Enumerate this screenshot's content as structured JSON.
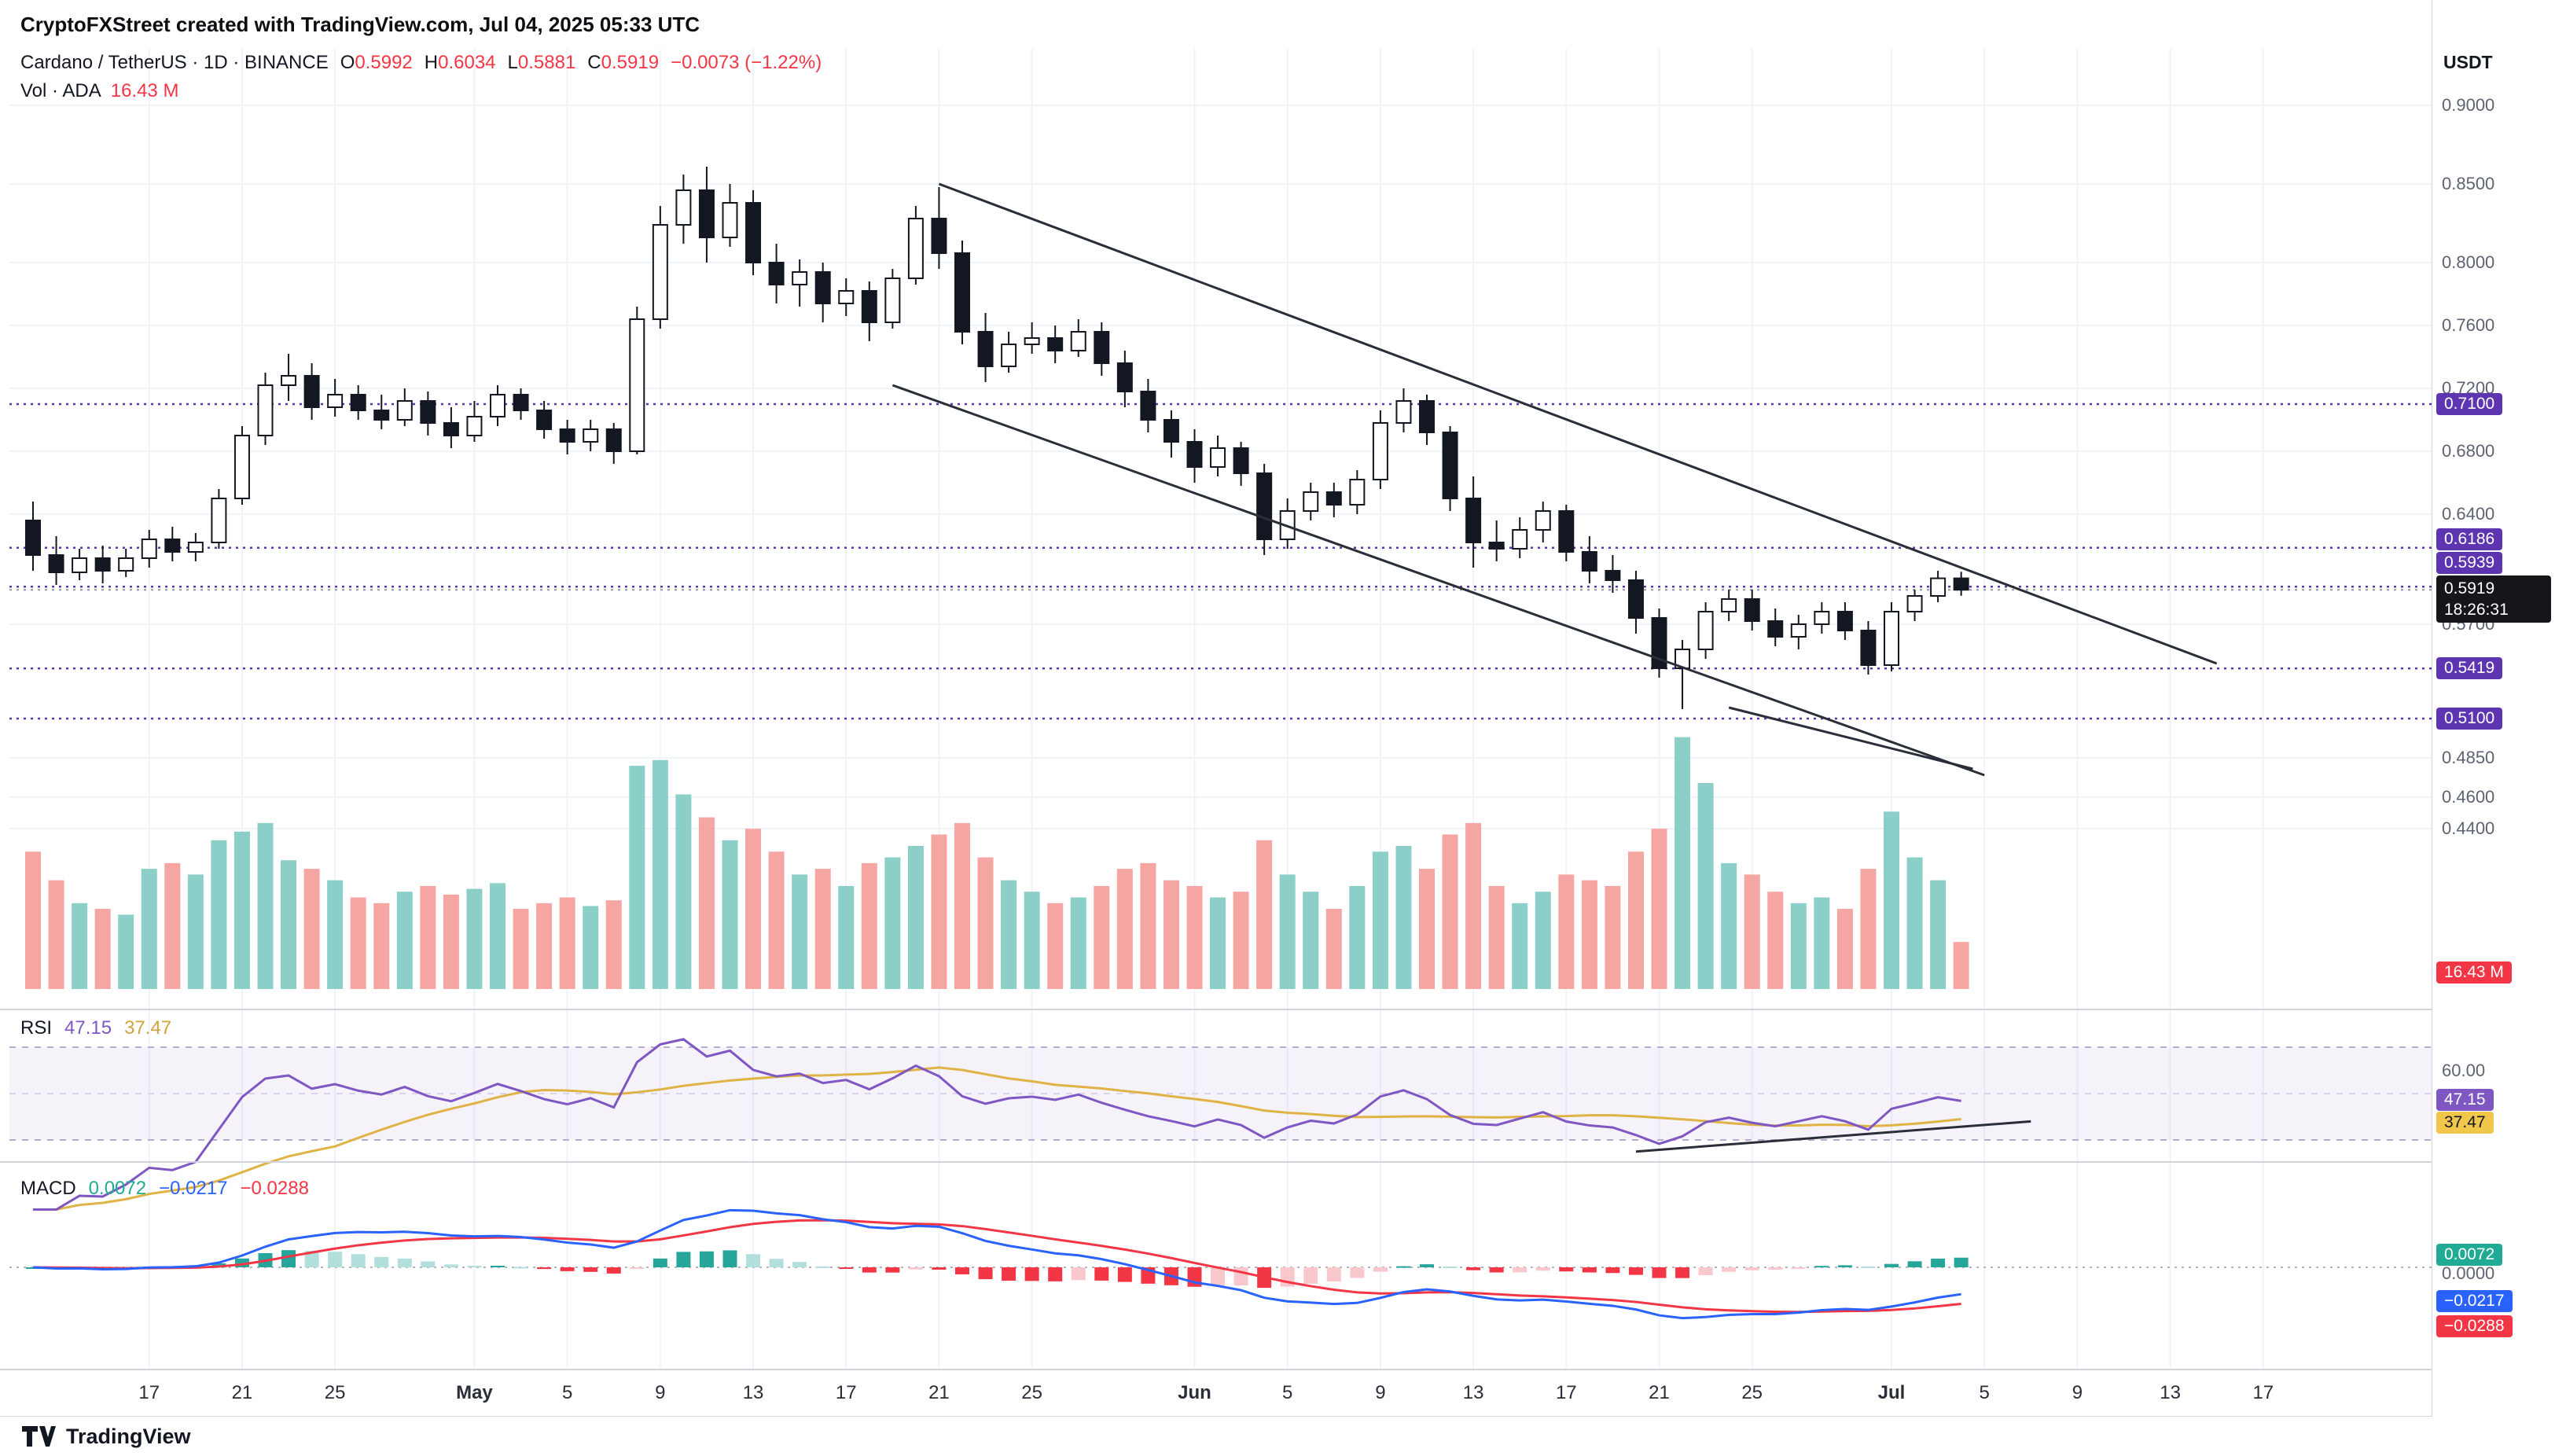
{
  "header": {
    "credit": "CryptoFXStreet created with TradingView.com, Jul 04, 2025 05:33 UTC"
  },
  "legend": {
    "symbol_line": "Cardano / TetherUS · 1D · BINANCE",
    "o_l": "O",
    "o_v": "0.5992",
    "h_l": "H",
    "h_v": "0.6034",
    "l_l": "L",
    "l_v": "0.5881",
    "c_l": "C",
    "c_v": "0.5919",
    "change": "−0.0073 (−1.22%)"
  },
  "vol_legend": {
    "label": "Vol · ADA",
    "value": "16.43 M"
  },
  "rsi_legend": {
    "label": "RSI",
    "value": "47.15",
    "ma_value": "37.47"
  },
  "macd_legend": {
    "label": "MACD",
    "hist": "0.0072",
    "macd": "−0.0217",
    "signal": "−0.0288"
  },
  "axis": {
    "currency": "USDT",
    "price_ticks": [
      {
        "t": "0.9000",
        "p": 0.9
      },
      {
        "t": "0.8500",
        "p": 0.85
      },
      {
        "t": "0.8000",
        "p": 0.8
      },
      {
        "t": "0.7600",
        "p": 0.76
      },
      {
        "t": "0.7200",
        "p": 0.72
      },
      {
        "t": "0.6800",
        "p": 0.68
      },
      {
        "t": "0.6400",
        "p": 0.64
      },
      {
        "t": "0.5700",
        "p": 0.57
      },
      {
        "t": "0.4850",
        "p": 0.485
      },
      {
        "t": "0.4600",
        "p": 0.46
      },
      {
        "t": "0.4400",
        "p": 0.44
      }
    ],
    "level_badges": [
      {
        "t": "0.7100",
        "p": 0.71
      },
      {
        "t": "0.6186",
        "p": 0.6186,
        "ny": 686
      },
      {
        "t": "0.5939",
        "p": 0.5939,
        "ny": 716
      },
      {
        "t": "0.5419",
        "p": 0.5419
      },
      {
        "t": "0.5100",
        "p": 0.51
      }
    ],
    "last_price": "0.5919",
    "countdown": "18:26:31",
    "vol_badge": "16.43 M",
    "rsi_tick": "60.00",
    "rsi_badges": [
      {
        "t": "47.15",
        "v": 47.15,
        "bg": "#7e57c2",
        "fg": "#ffffff"
      },
      {
        "t": "37.47",
        "v": 37.47,
        "bg": "#f0c64b",
        "fg": "#131722"
      }
    ],
    "macd_zero": "0.0000",
    "macd_badges": [
      {
        "t": "0.0072",
        "cy": 1596,
        "bg": "#22ab94"
      },
      {
        "t": "−0.0217",
        "cy": 1655,
        "bg": "#2962ff"
      },
      {
        "t": "−0.0288",
        "cy": 1687,
        "bg": "#f23645"
      }
    ]
  },
  "time_axis": [
    {
      "label": "17",
      "i": 5
    },
    {
      "label": "21",
      "i": 9
    },
    {
      "label": "25",
      "i": 13
    },
    {
      "label": "May",
      "i": 19,
      "bold": true
    },
    {
      "label": "5",
      "i": 23
    },
    {
      "label": "9",
      "i": 27
    },
    {
      "label": "13",
      "i": 31
    },
    {
      "label": "17",
      "i": 35
    },
    {
      "label": "21",
      "i": 39
    },
    {
      "label": "25",
      "i": 43
    },
    {
      "label": "Jun",
      "i": 50,
      "bold": true
    },
    {
      "label": "5",
      "i": 54
    },
    {
      "label": "9",
      "i": 58
    },
    {
      "label": "13",
      "i": 62
    },
    {
      "label": "17",
      "i": 66
    },
    {
      "label": "21",
      "i": 70
    },
    {
      "label": "25",
      "i": 74
    },
    {
      "label": "Jul",
      "i": 80,
      "bold": true
    },
    {
      "label": "5",
      "i": 84
    },
    {
      "label": "9",
      "i": 88
    },
    {
      "label": "13",
      "i": 92
    },
    {
      "label": "17",
      "i": 96
    }
  ],
  "footer": {
    "brand": "TradingView"
  },
  "colors": {
    "up_body": "#ffffff",
    "down_body": "#131722",
    "outline": "#131722",
    "vol_up": "#8ccfc8",
    "vol_down": "#f5a6a3",
    "level_line": "#5e35b1",
    "last_line": "#9598a1",
    "trend_line": "#2a2e39",
    "rsi": "#7e57c2",
    "rsi_ma": "#dfb345",
    "rsi_band": "#7e57c2",
    "macd_line": "#2962ff",
    "signal_line": "#f23645",
    "hist": [
      "#26a69a",
      "#b2dfdb",
      "#f23645",
      "#f8c8cc"
    ],
    "grid": "#f0f3fa",
    "separator": "#d1d4dc",
    "down_text": "#f23645"
  },
  "chart_data": {
    "type": "candlestick",
    "title": "Cardano / TetherUS 1D BINANCE",
    "symbol": "ADA/USDT",
    "interval": "1D",
    "exchange": "BINANCE",
    "x_range": "Apr 12 2025 – Jul 17 2025 (daily)",
    "ylim": [
      0.44,
      0.92
    ],
    "volume_unit": "millions ADA",
    "last_price": 0.5919,
    "last_change": -0.0073,
    "last_change_pct": -1.22,
    "price_levels": [
      0.71,
      0.6186,
      0.5939,
      0.5419,
      0.51
    ],
    "indicators": {
      "rsi_period": 14,
      "rsi_ma_period": 14,
      "macd": [
        12,
        26,
        9
      ],
      "rsi_current": 47.15,
      "rsi_ma_current": 37.47,
      "macd_hist_current": 0.0072,
      "macd_current": -0.0217,
      "signal_current": -0.0288
    },
    "trendlines": [
      {
        "i1": 39,
        "p1": 0.85,
        "i2": 94,
        "p2": 0.545
      },
      {
        "i1": 37,
        "p1": 0.722,
        "i2": 84,
        "p2": 0.474
      },
      {
        "i1": 73,
        "p1": 0.517,
        "i2": 83.5,
        "p2": 0.478
      }
    ],
    "rsi_trendline": {
      "i1": 69,
      "v1": 25,
      "i2": 86,
      "v2": 38
    },
    "candles": [
      [
        0.636,
        0.648,
        0.604,
        0.614,
        48
      ],
      [
        0.614,
        0.626,
        0.595,
        0.603,
        38
      ],
      [
        0.603,
        0.618,
        0.598,
        0.612,
        30
      ],
      [
        0.612,
        0.62,
        0.596,
        0.604,
        28
      ],
      [
        0.604,
        0.618,
        0.6,
        0.612,
        26
      ],
      [
        0.612,
        0.63,
        0.606,
        0.624,
        42
      ],
      [
        0.624,
        0.632,
        0.61,
        0.616,
        44
      ],
      [
        0.616,
        0.628,
        0.61,
        0.622,
        40
      ],
      [
        0.622,
        0.656,
        0.618,
        0.65,
        52
      ],
      [
        0.65,
        0.696,
        0.646,
        0.69,
        55
      ],
      [
        0.69,
        0.73,
        0.684,
        0.722,
        58
      ],
      [
        0.722,
        0.742,
        0.712,
        0.728,
        45
      ],
      [
        0.728,
        0.736,
        0.7,
        0.708,
        42
      ],
      [
        0.708,
        0.726,
        0.702,
        0.716,
        38
      ],
      [
        0.716,
        0.722,
        0.7,
        0.706,
        32
      ],
      [
        0.706,
        0.716,
        0.694,
        0.7,
        30
      ],
      [
        0.7,
        0.72,
        0.696,
        0.712,
        34
      ],
      [
        0.712,
        0.718,
        0.69,
        0.698,
        36
      ],
      [
        0.698,
        0.708,
        0.682,
        0.69,
        33
      ],
      [
        0.69,
        0.712,
        0.686,
        0.702,
        35
      ],
      [
        0.702,
        0.722,
        0.696,
        0.716,
        37
      ],
      [
        0.716,
        0.72,
        0.7,
        0.706,
        28
      ],
      [
        0.706,
        0.712,
        0.688,
        0.694,
        30
      ],
      [
        0.694,
        0.7,
        0.678,
        0.686,
        32
      ],
      [
        0.686,
        0.7,
        0.68,
        0.694,
        29
      ],
      [
        0.694,
        0.698,
        0.672,
        0.68,
        31
      ],
      [
        0.68,
        0.772,
        0.678,
        0.764,
        78
      ],
      [
        0.764,
        0.836,
        0.758,
        0.824,
        80
      ],
      [
        0.824,
        0.856,
        0.812,
        0.846,
        68
      ],
      [
        0.846,
        0.861,
        0.8,
        0.816,
        60
      ],
      [
        0.816,
        0.85,
        0.81,
        0.838,
        52
      ],
      [
        0.838,
        0.846,
        0.792,
        0.8,
        56
      ],
      [
        0.8,
        0.812,
        0.774,
        0.786,
        48
      ],
      [
        0.786,
        0.802,
        0.772,
        0.794,
        40
      ],
      [
        0.794,
        0.8,
        0.762,
        0.774,
        42
      ],
      [
        0.774,
        0.79,
        0.766,
        0.782,
        36
      ],
      [
        0.782,
        0.788,
        0.75,
        0.762,
        44
      ],
      [
        0.762,
        0.796,
        0.758,
        0.79,
        46
      ],
      [
        0.79,
        0.836,
        0.786,
        0.828,
        50
      ],
      [
        0.828,
        0.848,
        0.796,
        0.806,
        54
      ],
      [
        0.806,
        0.814,
        0.748,
        0.756,
        58
      ],
      [
        0.756,
        0.768,
        0.724,
        0.734,
        46
      ],
      [
        0.734,
        0.756,
        0.73,
        0.748,
        38
      ],
      [
        0.748,
        0.762,
        0.742,
        0.752,
        34
      ],
      [
        0.752,
        0.76,
        0.736,
        0.744,
        30
      ],
      [
        0.744,
        0.764,
        0.74,
        0.756,
        32
      ],
      [
        0.756,
        0.762,
        0.728,
        0.736,
        36
      ],
      [
        0.736,
        0.744,
        0.708,
        0.718,
        42
      ],
      [
        0.718,
        0.726,
        0.692,
        0.7,
        44
      ],
      [
        0.7,
        0.706,
        0.676,
        0.686,
        38
      ],
      [
        0.686,
        0.694,
        0.66,
        0.67,
        36
      ],
      [
        0.67,
        0.69,
        0.664,
        0.682,
        32
      ],
      [
        0.682,
        0.686,
        0.658,
        0.666,
        34
      ],
      [
        0.666,
        0.672,
        0.614,
        0.624,
        52
      ],
      [
        0.624,
        0.65,
        0.618,
        0.642,
        40
      ],
      [
        0.642,
        0.66,
        0.636,
        0.654,
        34
      ],
      [
        0.654,
        0.66,
        0.638,
        0.646,
        28
      ],
      [
        0.646,
        0.668,
        0.64,
        0.662,
        36
      ],
      [
        0.662,
        0.706,
        0.656,
        0.698,
        48
      ],
      [
        0.698,
        0.72,
        0.692,
        0.712,
        50
      ],
      [
        0.712,
        0.716,
        0.684,
        0.692,
        42
      ],
      [
        0.692,
        0.696,
        0.642,
        0.65,
        54
      ],
      [
        0.65,
        0.664,
        0.606,
        0.622,
        58
      ],
      [
        0.622,
        0.636,
        0.61,
        0.618,
        36
      ],
      [
        0.618,
        0.638,
        0.612,
        0.63,
        30
      ],
      [
        0.63,
        0.648,
        0.622,
        0.642,
        34
      ],
      [
        0.642,
        0.646,
        0.61,
        0.616,
        40
      ],
      [
        0.616,
        0.626,
        0.596,
        0.604,
        38
      ],
      [
        0.604,
        0.614,
        0.59,
        0.598,
        36
      ],
      [
        0.598,
        0.604,
        0.564,
        0.574,
        48
      ],
      [
        0.574,
        0.58,
        0.536,
        0.542,
        56
      ],
      [
        0.542,
        0.56,
        0.516,
        0.554,
        88
      ],
      [
        0.554,
        0.584,
        0.548,
        0.578,
        72
      ],
      [
        0.578,
        0.592,
        0.572,
        0.586,
        44
      ],
      [
        0.586,
        0.592,
        0.566,
        0.572,
        40
      ],
      [
        0.572,
        0.58,
        0.556,
        0.562,
        34
      ],
      [
        0.562,
        0.576,
        0.554,
        0.57,
        30
      ],
      [
        0.57,
        0.584,
        0.564,
        0.578,
        32
      ],
      [
        0.578,
        0.584,
        0.56,
        0.566,
        28
      ],
      [
        0.566,
        0.572,
        0.538,
        0.544,
        42
      ],
      [
        0.544,
        0.584,
        0.54,
        0.578,
        62
      ],
      [
        0.578,
        0.592,
        0.572,
        0.588,
        46
      ],
      [
        0.588,
        0.604,
        0.584,
        0.5992,
        38
      ],
      [
        0.5992,
        0.6034,
        0.5881,
        0.5919,
        16.43
      ]
    ]
  }
}
